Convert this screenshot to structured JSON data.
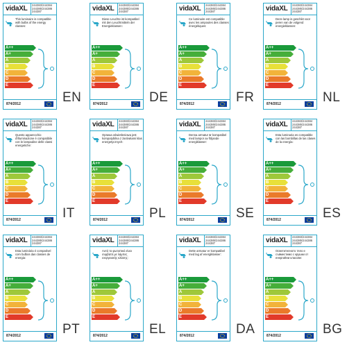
{
  "brand": "vidaXL",
  "models": "244383/244384\n244385/244386\n244387",
  "regulation": "874/2012",
  "energy_classes": [
    "A++",
    "A+",
    "A",
    "B",
    "C",
    "D",
    "E"
  ],
  "class_colors": [
    "#1a9a3a",
    "#46ae3a",
    "#9ec83a",
    "#e8e03a",
    "#f2b33a",
    "#ea7a2a",
    "#e23a2a"
  ],
  "panels": [
    {
      "lang": "EN",
      "text": "This luminaire is compatible with bulbs of the energy classes:"
    },
    {
      "lang": "DE",
      "text": "Diese Leuchte ist kompatibel mit den Leuchtmitteln der Energieklassen:"
    },
    {
      "lang": "FR",
      "text": "Ce luminaire est compatible avec les ampoules des classes énergétiques:"
    },
    {
      "lang": "NL",
      "text": "Deze lamp is geschikt voor peren van de volgend energieklassen:"
    },
    {
      "lang": "IT",
      "text": "Questo apparecchio d'illuminazione è compatibile con le lampadine delle classi energetiche:"
    },
    {
      "lang": "PL",
      "text": "Oprawa oświetleniowa jest kompatybilna z żarówkami klas energetycznych:"
    },
    {
      "lang": "SE",
      "text": "Denna armatur är kompatibel med lampor av följande energiklasser:"
    },
    {
      "lang": "ES",
      "text": "Esta luminaria es compatible con las bombillas de las clases de la energía:"
    },
    {
      "lang": "PT",
      "text": "Esta luminária é compatível com bulbos das classes de energia:"
    },
    {
      "lang": "EL",
      "text": "Αυτό το φωτιστικό είναι συμβατό με λάμπες ενεργειακής κλάσης:"
    },
    {
      "lang": "DA",
      "text": "Dette armatur er kompatibel med lag af energiklasser:"
    },
    {
      "lang": "BG",
      "text": "Осветителното тяло е съвместимо с крушки от енергийни класове:"
    }
  ]
}
